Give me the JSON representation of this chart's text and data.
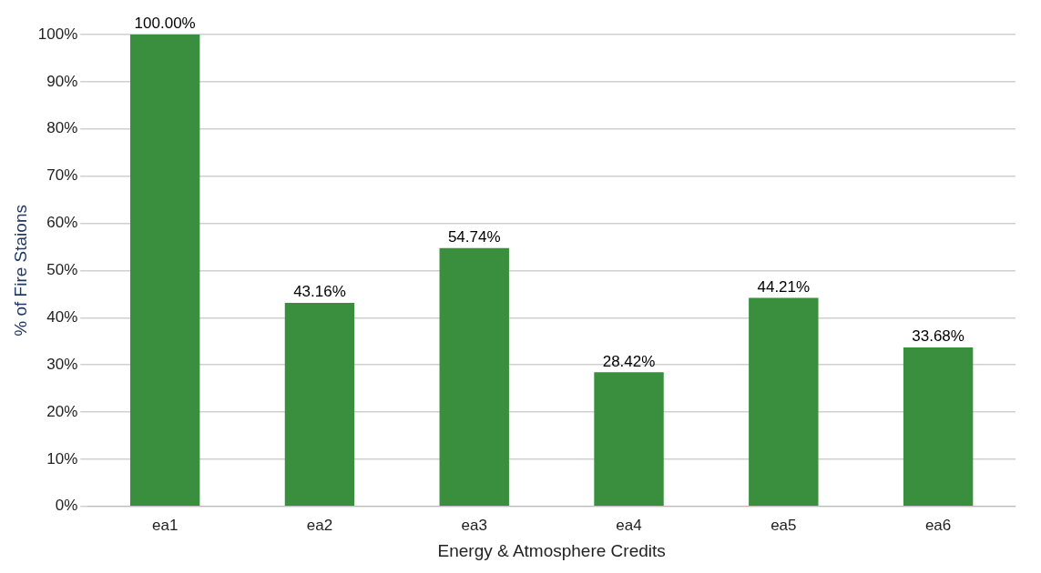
{
  "chart_data": {
    "type": "bar",
    "xlabel": "Energy & Atmosphere Credits",
    "ylabel": "% of Fire Staions",
    "categories": [
      "ea1",
      "ea2",
      "ea3",
      "ea4",
      "ea5",
      "ea6"
    ],
    "values": [
      100,
      43.16,
      54.74,
      28.42,
      44.21,
      33.68
    ],
    "value_labels": [
      "100.00%",
      "43.16%",
      "54.74%",
      "28.42%",
      "44.21%",
      "33.68%"
    ],
    "color": "#3a8f3e",
    "ylim": [
      0,
      100
    ],
    "yticks": [
      {
        "value": 0,
        "label": "0%"
      },
      {
        "value": 10,
        "label": "10%"
      },
      {
        "value": 20,
        "label": "20%"
      },
      {
        "value": 30,
        "label": "30%"
      },
      {
        "value": 40,
        "label": "40%"
      },
      {
        "value": 50,
        "label": "50%"
      },
      {
        "value": 60,
        "label": "60%"
      },
      {
        "value": 70,
        "label": "70%"
      },
      {
        "value": 80,
        "label": "80%"
      },
      {
        "value": 90,
        "label": "90%"
      },
      {
        "value": 100,
        "label": "100%"
      }
    ],
    "grid": "y",
    "legend": false
  }
}
